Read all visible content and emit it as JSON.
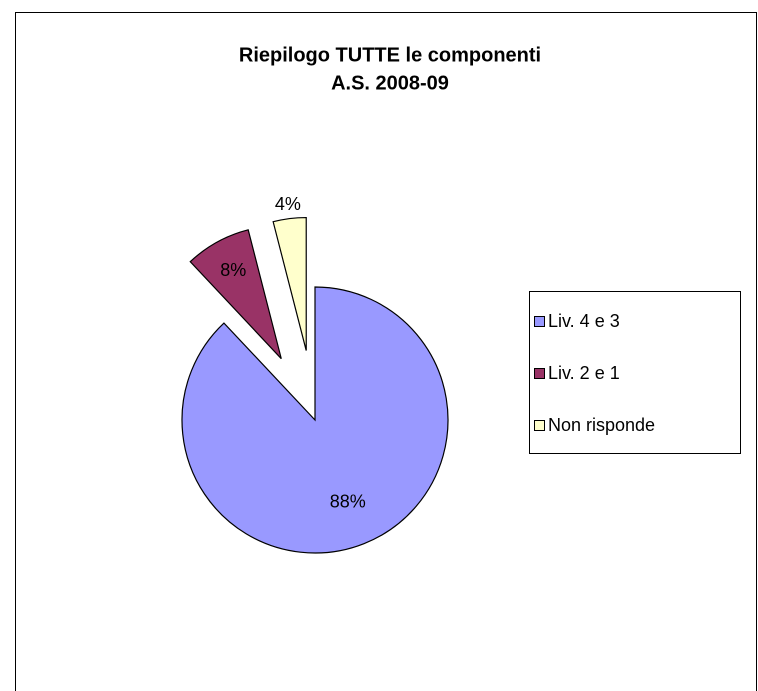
{
  "chart_data": {
    "type": "pie",
    "title": [
      "Riepilogo TUTTE le componenti",
      "A.S. 2008-09"
    ],
    "categories": [
      "Liv. 4 e 3",
      "Liv. 2 e 1",
      "Non risponde"
    ],
    "values": [
      88,
      8,
      4
    ],
    "value_labels": [
      "88%",
      "8%",
      "4%"
    ],
    "colors": [
      "#9999ff",
      "#993366",
      "#ffffcc"
    ],
    "legend": "right"
  }
}
